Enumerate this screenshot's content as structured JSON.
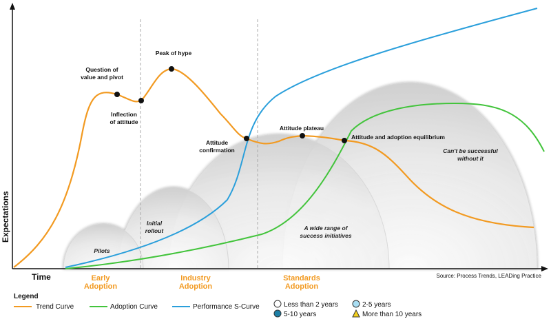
{
  "axes": {
    "y_label": "Expectations",
    "x_label": "Time"
  },
  "phases": [
    {
      "line1": "Early",
      "line2": "Adoption"
    },
    {
      "line1": "Industry",
      "line2": "Adoption"
    },
    {
      "line1": "Standards",
      "line2": "Adoption"
    }
  ],
  "annotations": {
    "question": [
      "Question of",
      "value and pivot"
    ],
    "inflection": [
      "Inflection",
      "of attitude"
    ],
    "peak": "Peak of hype",
    "confirmation": [
      "Attitude",
      "confirmation"
    ],
    "plateau": "Attitude plateau",
    "equilibrium": "Attitude and adoption equilibrium"
  },
  "domes": {
    "pilots": "Pilots",
    "initial_rollout": [
      "Initial",
      "rollout"
    ],
    "wide_range": [
      "A wide range of",
      "success initiatives"
    ],
    "cant_succeed": [
      "Can't be successful",
      "without it"
    ]
  },
  "source": "Source: Process Trends, LEADing Practice",
  "legend": {
    "title": "Legend",
    "curves": [
      {
        "label": "Trend Curve",
        "color": "#F29A21"
      },
      {
        "label": "Adoption Curve",
        "color": "#43C43C"
      },
      {
        "label": "Performance S-Curve",
        "color": "#2A9FDB"
      }
    ],
    "markers": [
      {
        "label": "Less than 2 years",
        "symbol": "circle",
        "fill": "#ffffff"
      },
      {
        "label": "2-5 years",
        "symbol": "circle",
        "fill": "#A9DEF3"
      },
      {
        "label": "5-10 years",
        "symbol": "circle",
        "fill": "#1E7FA6"
      },
      {
        "label": "More than 10 years",
        "symbol": "triangle",
        "fill": "#F5D21E"
      }
    ]
  },
  "colors": {
    "trend": "#F29A21",
    "adoption": "#43C43C",
    "performance": "#2A9FDB",
    "phase_text": "#F29A21"
  }
}
